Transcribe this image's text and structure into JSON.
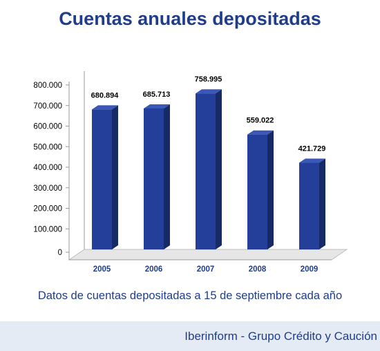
{
  "chart_data": {
    "type": "bar",
    "title": "Cuentas anuales depositadas",
    "categories": [
      "2005",
      "2006",
      "2007",
      "2008",
      "2009"
    ],
    "values": [
      680894,
      685713,
      758995,
      559022,
      421729
    ],
    "data_labels": [
      "680.894",
      "685.713",
      "758.995",
      "559.022",
      "421.729"
    ],
    "y_ticks": [
      0,
      100000,
      200000,
      300000,
      400000,
      500000,
      600000,
      700000,
      800000
    ],
    "y_tick_labels": [
      "0",
      "100.000",
      "200.000",
      "300.000",
      "400.000",
      "500.000",
      "600.000",
      "700.000",
      "800.000"
    ],
    "ylim": [
      0,
      800000
    ],
    "xlabel": "",
    "ylabel": "",
    "grid": false,
    "legend": "none",
    "style": "3d",
    "colors": {
      "bar_front": "#233f9a",
      "bar_side": "#172a66",
      "bar_top": "#3b58b8",
      "floor": "#e6e6e6"
    }
  },
  "caption": "Datos de cuentas depositadas a 15 de septiembre cada año",
  "footer": "Iberinform - Grupo Crédito y Caución",
  "colors": {
    "title": "#1f3d8c",
    "footer_bg": "#e4ebf4"
  }
}
